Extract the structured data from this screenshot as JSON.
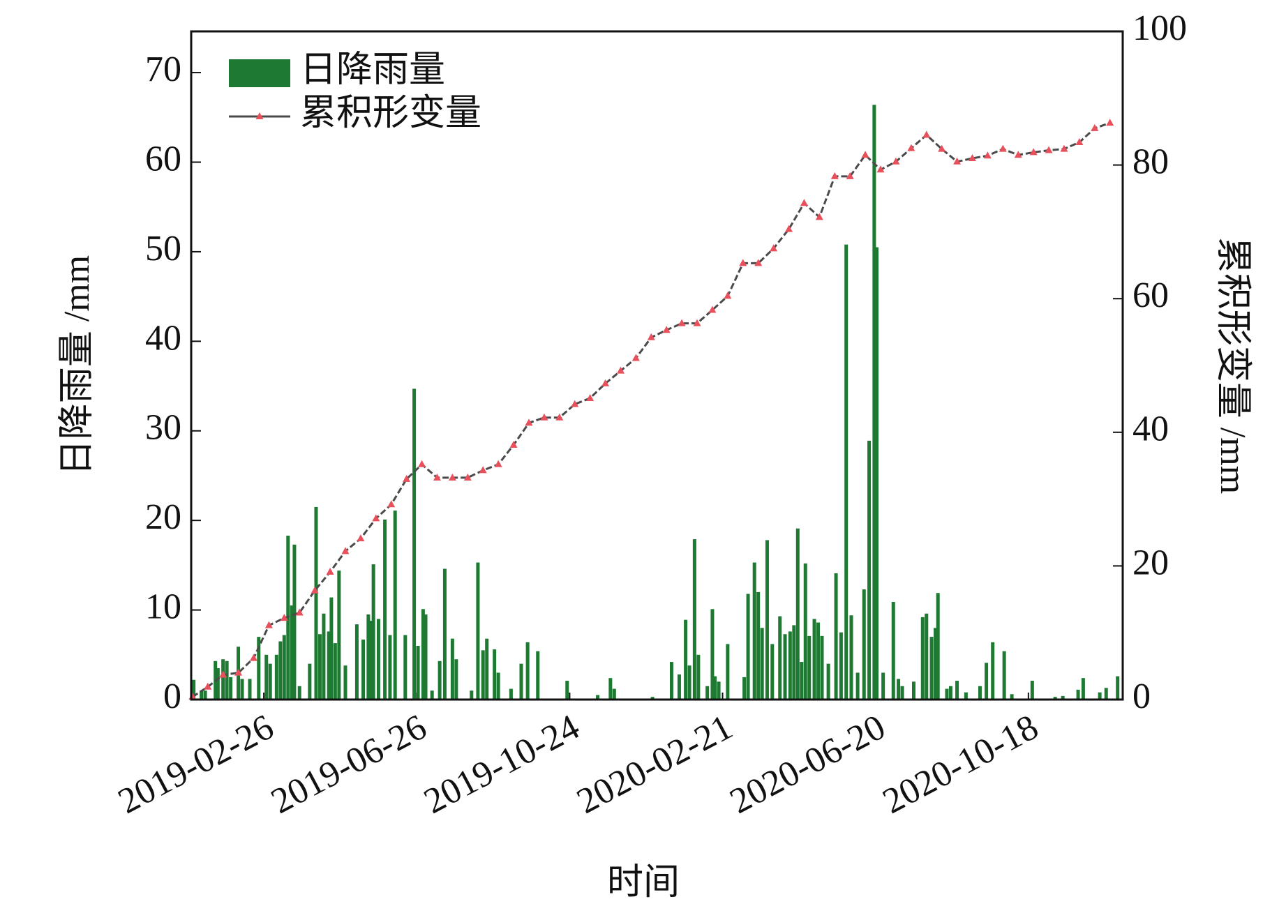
{
  "chart_data": {
    "type": "bar-line",
    "x_label": "时间",
    "y_label": "日降雨量 /mm",
    "y2_label": "累积形变量 /mm",
    "xlim": [
      "2018-12-31",
      "2020-12-31"
    ],
    "xticks": [
      "2019-02-26",
      "2019-06-26",
      "2019-10-24",
      "2020-02-21",
      "2020-06-20",
      "2020-10-18"
    ],
    "ylim": [
      0,
      74.6
    ],
    "yticks": [
      0,
      10,
      20,
      30,
      40,
      50,
      60,
      70
    ],
    "y2lim": [
      0,
      100
    ],
    "y2ticks": [
      0,
      20,
      40,
      60,
      80,
      100
    ],
    "legend": "upper left",
    "series": [
      {
        "name": "日降雨量",
        "type": "bar",
        "color": "#1e7a32",
        "x": [
          "2019-01-02",
          "2019-01-08",
          "2019-01-11",
          "2019-01-19",
          "2019-01-21",
          "2019-01-25",
          "2019-01-28",
          "2019-01-31",
          "2019-02-06",
          "2019-02-09",
          "2019-02-15",
          "2019-02-22",
          "2019-02-28",
          "2019-03-03",
          "2019-03-08",
          "2019-03-11",
          "2019-03-14",
          "2019-03-17",
          "2019-03-20",
          "2019-03-22",
          "2019-03-26",
          "2019-04-03",
          "2019-04-08",
          "2019-04-11",
          "2019-04-14",
          "2019-04-18",
          "2019-04-20",
          "2019-04-23",
          "2019-04-26",
          "2019-05-01",
          "2019-05-10",
          "2019-05-15",
          "2019-05-19",
          "2019-05-21",
          "2019-05-23",
          "2019-05-27",
          "2019-06-01",
          "2019-06-05",
          "2019-06-09",
          "2019-06-17",
          "2019-06-24",
          "2019-06-27",
          "2019-07-01",
          "2019-07-03",
          "2019-07-08",
          "2019-07-14",
          "2019-07-18",
          "2019-07-24",
          "2019-07-27",
          "2019-08-08",
          "2019-08-13",
          "2019-08-17",
          "2019-08-20",
          "2019-08-26",
          "2019-08-29",
          "2019-09-08",
          "2019-09-16",
          "2019-09-21",
          "2019-09-29",
          "2019-10-22",
          "2019-11-15",
          "2019-11-25",
          "2019-11-28",
          "2019-12-28",
          "2020-01-12",
          "2020-01-18",
          "2020-01-23",
          "2020-01-26",
          "2020-01-30",
          "2020-02-02",
          "2020-02-09",
          "2020-02-13",
          "2020-02-15",
          "2020-02-18",
          "2020-02-25",
          "2020-03-09",
          "2020-03-12",
          "2020-03-17",
          "2020-03-20",
          "2020-03-23",
          "2020-03-27",
          "2020-03-31",
          "2020-04-06",
          "2020-04-10",
          "2020-04-14",
          "2020-04-17",
          "2020-04-20",
          "2020-04-23",
          "2020-04-26",
          "2020-04-29",
          "2020-05-03",
          "2020-05-06",
          "2020-05-09",
          "2020-05-14",
          "2020-05-20",
          "2020-05-24",
          "2020-05-28",
          "2020-06-01",
          "2020-06-06",
          "2020-06-11",
          "2020-06-15",
          "2020-06-19",
          "2020-06-21",
          "2020-06-26",
          "2020-07-04",
          "2020-07-08",
          "2020-07-11",
          "2020-07-20",
          "2020-07-27",
          "2020-07-30",
          "2020-08-03",
          "2020-08-06",
          "2020-08-08",
          "2020-08-15",
          "2020-08-18",
          "2020-08-23",
          "2020-08-30",
          "2020-09-10",
          "2020-09-15",
          "2020-09-20",
          "2020-09-29",
          "2020-10-05",
          "2020-10-21",
          "2020-11-08",
          "2020-11-14",
          "2020-11-26",
          "2020-11-30",
          "2020-12-13",
          "2020-12-18",
          "2020-12-27"
        ],
        "values": [
          2.2,
          1.0,
          1.0,
          4.3,
          3.5,
          4.5,
          4.3,
          2.5,
          5.9,
          2.3,
          2.3,
          7.0,
          5.0,
          4.0,
          5.0,
          6.5,
          7.2,
          18.3,
          10.5,
          17.3,
          1.5,
          4.0,
          21.5,
          7.3,
          9.6,
          7.6,
          11.4,
          6.3,
          14.4,
          3.8,
          8.4,
          6.7,
          9.5,
          8.8,
          15.1,
          9.0,
          20.1,
          7.2,
          21.1,
          7.2,
          34.7,
          6.0,
          10.1,
          9.5,
          1.0,
          4.3,
          14.6,
          6.8,
          4.5,
          1.0,
          15.3,
          5.5,
          6.8,
          5.6,
          3.0,
          1.2,
          4.0,
          6.4,
          5.4,
          2.1,
          0.5,
          2.4,
          1.2,
          0.3,
          4.2,
          2.8,
          8.9,
          3.8,
          17.9,
          5.0,
          1.5,
          10.1,
          2.6,
          2.0,
          6.2,
          2.5,
          11.8,
          15.3,
          12.0,
          8.0,
          17.8,
          6.2,
          9.3,
          7.3,
          7.6,
          8.3,
          19.1,
          4.2,
          15.2,
          7.1,
          9.0,
          8.6,
          7.1,
          4.0,
          14.1,
          7.5,
          50.8,
          9.4,
          3.0,
          12.3,
          28.9,
          66.4,
          50.5,
          3.0,
          10.9,
          2.3,
          1.5,
          2.0,
          9.2,
          9.6,
          7.0,
          8.0,
          11.9,
          1.2,
          1.5,
          2.1,
          0.8,
          1.5,
          4.1,
          6.4,
          5.4,
          0.6,
          2.1,
          0.3,
          0.4,
          1.1,
          2.4,
          0.8,
          1.3,
          2.6
        ]
      },
      {
        "name": "累积形变量",
        "type": "line",
        "axis": "y2",
        "color": "#4a4a4a",
        "marker_color": "#e8505b",
        "x": [
          "2019-01-01",
          "2019-01-13",
          "2019-01-25",
          "2019-02-06",
          "2019-02-18",
          "2019-03-02",
          "2019-03-14",
          "2019-03-26",
          "2019-04-07",
          "2019-04-19",
          "2019-05-01",
          "2019-05-13",
          "2019-05-25",
          "2019-06-06",
          "2019-06-18",
          "2019-06-30",
          "2019-07-12",
          "2019-07-24",
          "2019-08-05",
          "2019-08-17",
          "2019-08-29",
          "2019-09-10",
          "2019-09-22",
          "2019-10-04",
          "2019-10-16",
          "2019-10-28",
          "2019-11-09",
          "2019-11-21",
          "2019-12-03",
          "2019-12-15",
          "2019-12-27",
          "2020-01-08",
          "2020-01-20",
          "2020-02-01",
          "2020-02-13",
          "2020-02-25",
          "2020-03-08",
          "2020-03-20",
          "2020-04-01",
          "2020-04-13",
          "2020-04-25",
          "2020-05-07",
          "2020-05-19",
          "2020-05-31",
          "2020-06-12",
          "2020-06-24",
          "2020-07-06",
          "2020-07-18",
          "2020-07-30",
          "2020-08-11",
          "2020-08-23",
          "2020-09-04",
          "2020-09-16",
          "2020-09-28",
          "2020-10-10",
          "2020-10-22",
          "2020-11-03",
          "2020-11-15",
          "2020-11-27",
          "2020-12-09",
          "2020-12-21"
        ],
        "values": [
          0.4,
          1.9,
          3.7,
          4.0,
          6.2,
          11.1,
          12.2,
          13.0,
          16.3,
          19.1,
          22.2,
          24.1,
          27.1,
          29.2,
          33.0,
          35.2,
          33.2,
          33.2,
          33.2,
          34.3,
          35.2,
          38.1,
          41.4,
          42.2,
          42.2,
          44.2,
          45.1,
          47.3,
          49.2,
          51.1,
          54.2,
          55.3,
          56.3,
          56.3,
          58.3,
          60.4,
          65.3,
          65.3,
          67.5,
          70.4,
          74.3,
          72.2,
          78.3,
          78.3,
          81.5,
          79.3,
          80.5,
          82.5,
          84.5,
          82.4,
          80.5,
          81.0,
          81.4,
          82.4,
          81.5,
          81.9,
          82.2,
          82.4,
          83.4,
          85.5,
          86.3
        ]
      }
    ]
  }
}
